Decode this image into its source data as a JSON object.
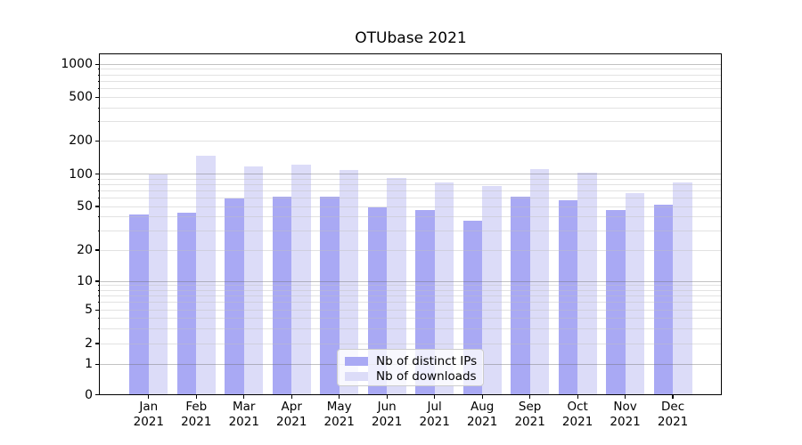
{
  "chart_data": {
    "type": "bar",
    "title": "OTUbase 2021",
    "categories": [
      "Jan",
      "Feb",
      "Mar",
      "Apr",
      "May",
      "Jun",
      "Jul",
      "Aug",
      "Sep",
      "Oct",
      "Nov",
      "Dec"
    ],
    "year_label": "2021",
    "series": [
      {
        "name": "Nb of distinct IPs",
        "color": "#a9a9f4",
        "values": [
          42,
          44,
          59,
          62,
          62,
          49,
          46,
          37,
          62,
          57,
          46,
          52
        ]
      },
      {
        "name": "Nb of downloads",
        "color": "#dcdcf8",
        "values": [
          100,
          148,
          118,
          123,
          109,
          92,
          84,
          77,
          111,
          103,
          66,
          83
        ]
      }
    ],
    "yscale": "symlog",
    "ytick_labels": [
      "0",
      "1",
      "2",
      "5",
      "10",
      "20",
      "50",
      "100",
      "200",
      "500",
      "1000"
    ],
    "ytick_values": [
      0,
      1,
      2,
      5,
      10,
      20,
      50,
      100,
      200,
      500,
      1000
    ],
    "ylim": [
      0,
      1000
    ],
    "grid": "on",
    "legend_position": "lower center",
    "colors": {
      "grid_major": "#bdbdbd",
      "grid_minor": "#ececec",
      "axis": "#000000",
      "background": "#ffffff"
    }
  }
}
